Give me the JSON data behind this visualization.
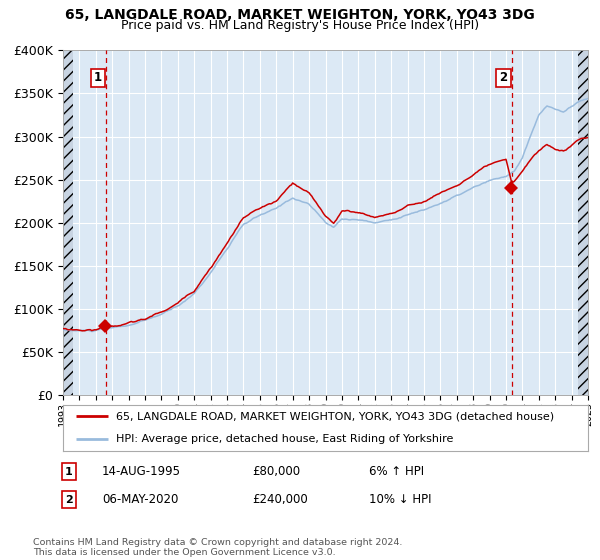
{
  "title": "65, LANGDALE ROAD, MARKET WEIGHTON, YORK, YO43 3DG",
  "subtitle": "Price paid vs. HM Land Registry's House Price Index (HPI)",
  "legend_line1": "65, LANGDALE ROAD, MARKET WEIGHTON, YORK, YO43 3DG (detached house)",
  "legend_line2": "HPI: Average price, detached house, East Riding of Yorkshire",
  "sale1_date": "14-AUG-1995",
  "sale1_price": 80000,
  "sale1_label": "6% ↑ HPI",
  "sale1_year": 1995.62,
  "sale2_date": "06-MAY-2020",
  "sale2_price": 240000,
  "sale2_label": "10% ↓ HPI",
  "sale2_year": 2020.35,
  "ylim_min": 0,
  "ylim_max": 400000,
  "ytick_step": 50000,
  "xmin": 1993,
  "xmax": 2025,
  "bg_color": "#dce9f5",
  "grid_color": "#ffffff",
  "line_hpi_color": "#99bbdd",
  "line_price_color": "#cc0000",
  "vline_color": "#cc0000",
  "point_color": "#cc0000",
  "footnote": "Contains HM Land Registry data © Crown copyright and database right 2024.\nThis data is licensed under the Open Government Licence v3.0."
}
